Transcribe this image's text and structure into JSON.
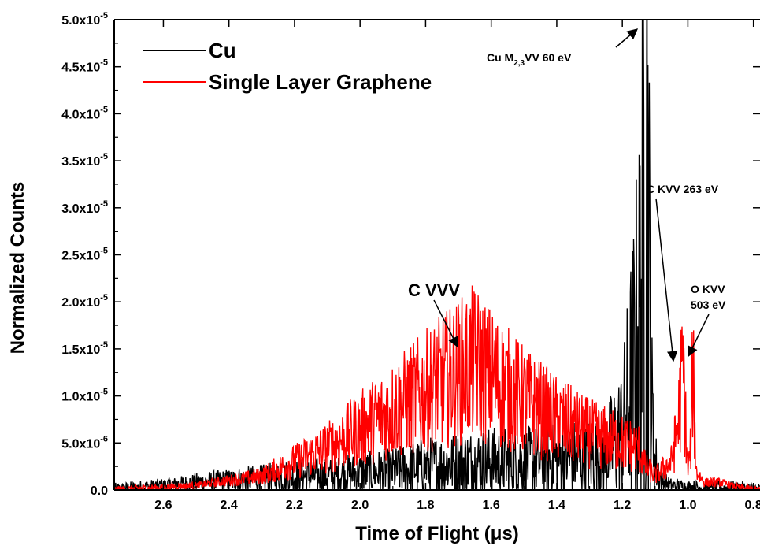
{
  "chart_data": {
    "type": "line",
    "title": "",
    "xlabel": "Time of Flight (μs)",
    "ylabel": "Normalized Counts",
    "xlim": [
      2.75,
      0.78
    ],
    "ylim": [
      0,
      5e-05
    ],
    "x_reversed": true,
    "grid": false,
    "legend_position": "top-left",
    "x_ticks": [
      2.6,
      2.4,
      2.2,
      2.0,
      1.8,
      1.6,
      1.4,
      1.2,
      1.0,
      0.8
    ],
    "x_tick_labels": [
      "2.6",
      "2.4",
      "2.2",
      "2.0",
      "1.8",
      "1.6",
      "1.4",
      "1.2",
      "1.0",
      "0.8"
    ],
    "y_ticks": [
      0,
      5e-06,
      1e-05,
      1.5e-05,
      2e-05,
      2.5e-05,
      3e-05,
      3.5e-05,
      4e-05,
      4.5e-05,
      5e-05
    ],
    "y_tick_labels": [
      {
        "mant": "0.0",
        "exp": ""
      },
      {
        "mant": "5.0x10",
        "exp": "-6"
      },
      {
        "mant": "1.0x10",
        "exp": "-5"
      },
      {
        "mant": "1.5x10",
        "exp": "-5"
      },
      {
        "mant": "2.0x10",
        "exp": "-5"
      },
      {
        "mant": "2.5x10",
        "exp": "-5"
      },
      {
        "mant": "3.0x10",
        "exp": "-5"
      },
      {
        "mant": "3.5x10",
        "exp": "-5"
      },
      {
        "mant": "4.0x10",
        "exp": "-5"
      },
      {
        "mant": "4.5x10",
        "exp": "-5"
      },
      {
        "mant": "5.0x10",
        "exp": "-5"
      }
    ],
    "series": [
      {
        "name": "Cu",
        "color": "#000000",
        "x": [
          2.75,
          2.6,
          2.5,
          2.4,
          2.3,
          2.2,
          2.1,
          2.0,
          1.9,
          1.8,
          1.7,
          1.6,
          1.5,
          1.4,
          1.3,
          1.25,
          1.2,
          1.17,
          1.15,
          1.14,
          1.13,
          1.125,
          1.12,
          1.11,
          1.1,
          1.08,
          1.05,
          1.0,
          0.95,
          0.9,
          0.85,
          0.78
        ],
        "y": [
          0,
          5e-07,
          8e-07,
          1e-06,
          1.2e-06,
          1.5e-06,
          1.5e-06,
          1.8e-06,
          2e-06,
          2.5e-06,
          2.8e-06,
          3e-06,
          3e-06,
          3.2e-06,
          3.5e-06,
          4e-06,
          6e-06,
          1.2e-05,
          1.7e-05,
          2.2e-05,
          4.9e-05,
          4.2e-05,
          2.5e-05,
          8e-06,
          3e-06,
          1e-06,
          5e-07,
          3e-07,
          2e-07,
          2e-07,
          2e-07,
          0
        ]
      },
      {
        "name": "Single Layer Graphene",
        "color": "#ff0000",
        "x": [
          2.75,
          2.5,
          2.3,
          2.2,
          2.1,
          2.0,
          1.9,
          1.8,
          1.7,
          1.65,
          1.6,
          1.5,
          1.4,
          1.3,
          1.2,
          1.15,
          1.13,
          1.1,
          1.05,
          1.03,
          1.015,
          1.0,
          0.99,
          0.985,
          0.975,
          0.95,
          0.9,
          0.85,
          0.78
        ],
        "y": [
          0,
          5e-07,
          1.5e-06,
          3e-06,
          4.5e-06,
          6.5e-06,
          8.5e-06,
          1.05e-05,
          1.25e-05,
          1.35e-05,
          1.2e-05,
          9.5e-06,
          7.5e-06,
          6e-06,
          5e-06,
          4.5e-06,
          2.5e-06,
          1.5e-06,
          3e-06,
          7e-06,
          1.32e-05,
          2e-06,
          5e-06,
          1.35e-05,
          2e-06,
          8e-07,
          8e-07,
          3e-07,
          0
        ]
      }
    ],
    "annotations": [
      {
        "id": "cu-m23vv",
        "main": "Cu M",
        "sub": "2,3",
        "rest": "VV 60 eV",
        "arrow_to": [
          1.13,
          4.9e-05
        ]
      },
      {
        "id": "c-kvv",
        "text": "C KVV 263 eV",
        "arrow_to": [
          1.015,
          1.32e-05
        ]
      },
      {
        "id": "o-kvv",
        "line1": "O KVV",
        "line2": "503 eV",
        "arrow_to": [
          0.99,
          1.4e-05
        ]
      },
      {
        "id": "c-vvv",
        "text": "C VVV",
        "arrow_to": [
          1.69,
          1.5e-05
        ]
      }
    ]
  }
}
